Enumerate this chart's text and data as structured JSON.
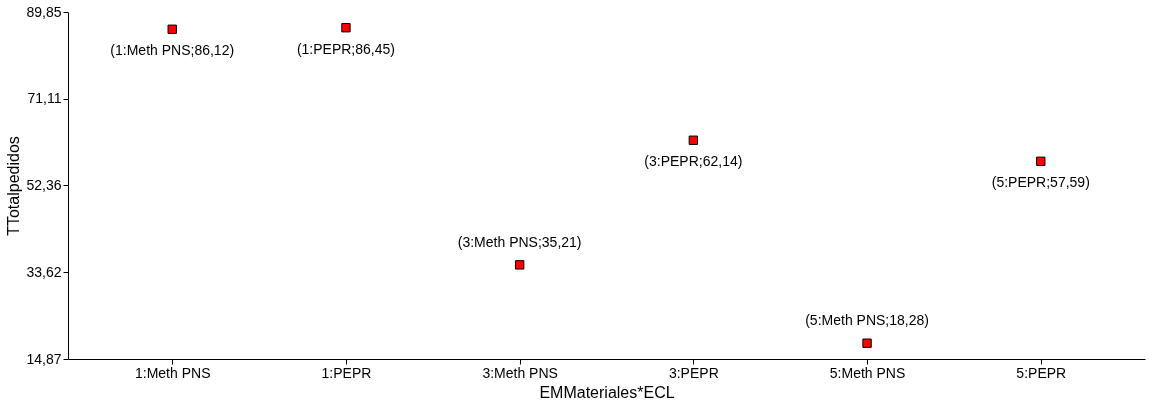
{
  "chart_data": {
    "type": "scatter",
    "xlabel": "EMMateriales*ECL",
    "ylabel": "TTotalpedidos",
    "categories": [
      "1:Meth PNS",
      "1:PEPR",
      "3:Meth PNS",
      "3:PEPR",
      "5:Meth PNS",
      "5:PEPR"
    ],
    "series": [
      {
        "color": "#ff0000",
        "values": [
          86.12,
          86.45,
          35.21,
          62.14,
          18.28,
          57.59
        ],
        "value_labels": [
          "(1:Meth PNS;86,12)",
          "(1:PEPR;86,45)",
          "(3:Meth PNS;35,21)",
          "(3:PEPR;62,14)",
          "(5:Meth PNS;18,28)",
          "(5:PEPR;57,59)"
        ]
      }
    ],
    "ylim": [
      14.87,
      89.85
    ],
    "yticks": [
      {
        "value": 14.87,
        "label": "14,87"
      },
      {
        "value": 33.62,
        "label": "33,62"
      },
      {
        "value": 52.36,
        "label": "52,36"
      },
      {
        "value": 71.11,
        "label": "71,11"
      },
      {
        "value": 89.85,
        "label": "89,85"
      }
    ],
    "marker": "square",
    "grid": false
  }
}
